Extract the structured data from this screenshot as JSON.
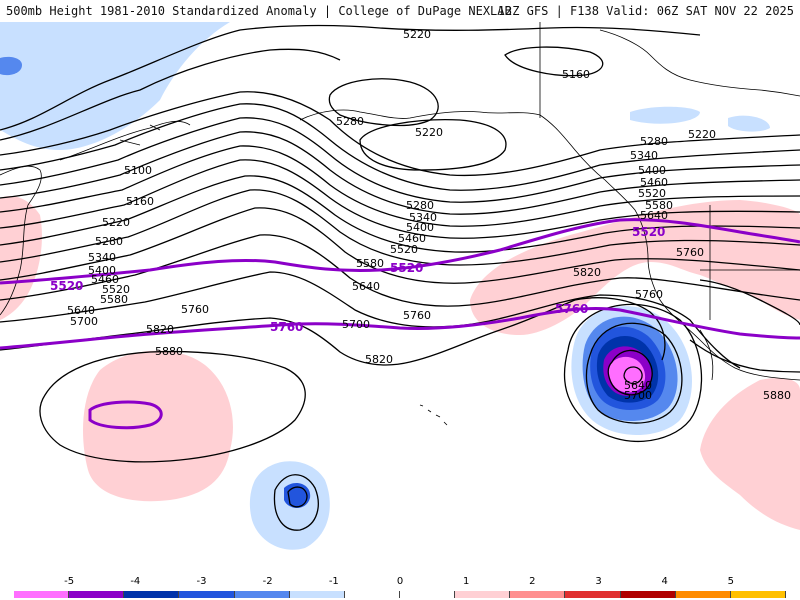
{
  "header": {
    "left": "500mb Height 1981-2010 Standardized Anomaly | College of DuPage NEXLAB",
    "right": "12Z GFS | F138 Valid: 06Z SAT NOV 22 2025"
  },
  "contours": {
    "height_labels": [
      "5220",
      "5160",
      "5280",
      "5220",
      "5100",
      "5160",
      "5220",
      "5280",
      "5340",
      "5400",
      "5460",
      "5520",
      "5580",
      "5640",
      "5700",
      "5820",
      "5760",
      "5880",
      "5280",
      "5340",
      "5400",
      "5460",
      "5520",
      "5580",
      "5640",
      "5700",
      "5820",
      "5760",
      "5220",
      "5280",
      "5340",
      "5400",
      "5460",
      "5520",
      "5580",
      "5640",
      "5760",
      "5820",
      "5760",
      "5640",
      "5700",
      "5880"
    ],
    "climo_labels": [
      "5520",
      "5520",
      "5520",
      "5760",
      "5760"
    ]
  },
  "colorbar": {
    "ticks": [
      "-5",
      "-4",
      "-3",
      "-2",
      "-1",
      "0",
      "1",
      "2",
      "3",
      "4",
      "5"
    ],
    "colors": [
      "#ff6eff",
      "#8b00c8",
      "#0033aa",
      "#2255dd",
      "#5588ee",
      "#c8e0ff",
      "#ffffff",
      "#ffffff",
      "#ffd0d4",
      "#ff9090",
      "#e03030",
      "#b00000",
      "#ff8c00",
      "#ffc000"
    ]
  },
  "colors": {
    "anom_neg_light": "#c8e0ff",
    "anom_neg_mid": "#5588ee",
    "anom_neg_strong": "#0033aa",
    "anom_neg_extreme": "#8b00c8",
    "anom_neg_max": "#ff6eff",
    "anom_pos_light": "#ffd0d4",
    "climo_line": "#8b00c8"
  }
}
